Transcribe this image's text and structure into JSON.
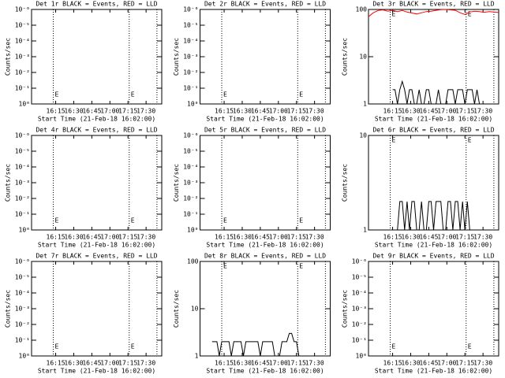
{
  "chart_data": [
    {
      "type": "line",
      "title": "Det 1r BLACK = Events, RED = LLD",
      "xlabel": "Start Time (21-Feb-18 16:02:00)",
      "ylabel": "Counts/sec",
      "log_y": true,
      "xlim": [
        955,
        1063
      ],
      "xticks": [
        {
          "value": 975,
          "label": "16:15"
        },
        {
          "value": 990,
          "label": "16:30"
        },
        {
          "value": 1005,
          "label": "16:45"
        },
        {
          "value": 1020,
          "label": "17:00"
        },
        {
          "value": 1035,
          "label": "17:15"
        },
        {
          "value": 1050,
          "label": "17:30"
        }
      ],
      "ylim": [
        1,
        1e-06
      ],
      "yticks": [
        {
          "value": 1,
          "label": "10⁰"
        },
        {
          "value": 0.1,
          "label": "10⁻¹"
        },
        {
          "value": 0.01,
          "label": "10⁻²"
        },
        {
          "value": 0.001,
          "label": "10⁻³"
        },
        {
          "value": 0.0001,
          "label": "10⁻⁴"
        },
        {
          "value": 1e-05,
          "label": "10⁻⁵"
        },
        {
          "value": 1e-06,
          "label": "10⁻⁶"
        }
      ],
      "vlines": [
        973,
        1036,
        1059
      ],
      "markers": [
        {
          "x": 973,
          "label": "E"
        },
        {
          "x": 1036,
          "label": "E"
        }
      ],
      "series": []
    },
    {
      "type": "line",
      "title": "Det 2r BLACK = Events, RED = LLD",
      "xlabel": "Start Time (21-Feb-18 16:02:00)",
      "ylabel": "Counts/sec",
      "log_y": true,
      "xlim": [
        955,
        1063
      ],
      "xticks": [
        {
          "value": 975,
          "label": "16:15"
        },
        {
          "value": 990,
          "label": "16:30"
        },
        {
          "value": 1005,
          "label": "16:45"
        },
        {
          "value": 1020,
          "label": "17:00"
        },
        {
          "value": 1035,
          "label": "17:15"
        },
        {
          "value": 1050,
          "label": "17:30"
        }
      ],
      "ylim": [
        1,
        1e-06
      ],
      "yticks": [
        {
          "value": 1,
          "label": "10⁰"
        },
        {
          "value": 0.1,
          "label": "10⁻¹"
        },
        {
          "value": 0.01,
          "label": "10⁻²"
        },
        {
          "value": 0.001,
          "label": "10⁻³"
        },
        {
          "value": 0.0001,
          "label": "10⁻⁴"
        },
        {
          "value": 1e-05,
          "label": "10⁻⁵"
        },
        {
          "value": 1e-06,
          "label": "10⁻⁶"
        }
      ],
      "vlines": [
        973,
        1036,
        1059
      ],
      "markers": [
        {
          "x": 973,
          "label": "E"
        },
        {
          "x": 1036,
          "label": "E"
        }
      ],
      "series": []
    },
    {
      "type": "line",
      "title": "Det 3r BLACK = Events, RED = LLD",
      "xlabel": "Start Time (21-Feb-18 16:02:00)",
      "ylabel": "Counts/sec",
      "log_y": true,
      "xlim": [
        955,
        1063
      ],
      "xticks": [
        {
          "value": 975,
          "label": "16:15"
        },
        {
          "value": 990,
          "label": "16:30"
        },
        {
          "value": 1005,
          "label": "16:45"
        },
        {
          "value": 1020,
          "label": "17:00"
        },
        {
          "value": 1035,
          "label": "17:15"
        },
        {
          "value": 1050,
          "label": "17:30"
        }
      ],
      "ylim": [
        1,
        100
      ],
      "yticks": [
        1,
        10,
        100
      ],
      "vlines": [
        973,
        1036,
        1059
      ],
      "markers": [
        {
          "x": 973,
          "label": "E"
        },
        {
          "x": 1036,
          "label": "E"
        }
      ],
      "series": [
        {
          "color": "#000000",
          "x": [
            975,
            977,
            979,
            981,
            983,
            985,
            987,
            989,
            991,
            993,
            995,
            997,
            999,
            1001,
            1003,
            1005,
            1007,
            1009,
            1011,
            1013,
            1015,
            1017,
            1019,
            1021,
            1023,
            1025,
            1027,
            1029,
            1031,
            1033,
            1035,
            1037,
            1039,
            1041,
            1043,
            1045,
            1047,
            1049,
            1051
          ],
          "values": [
            2,
            2,
            1,
            2,
            3,
            2,
            1,
            2,
            2,
            1,
            1,
            2,
            1,
            1,
            2,
            2,
            1,
            1,
            1,
            2,
            1,
            1,
            1,
            2,
            2,
            2,
            1,
            2,
            2,
            2,
            1,
            2,
            2,
            2,
            1,
            2,
            1,
            1,
            1
          ]
        },
        {
          "color": "#ff0000",
          "x": [
            955,
            959,
            963,
            967,
            971,
            975,
            979,
            983,
            987,
            991,
            995,
            999,
            1003,
            1007,
            1011,
            1015,
            1019,
            1023,
            1027,
            1031,
            1035,
            1039,
            1043,
            1047,
            1051,
            1055,
            1059,
            1063
          ],
          "values": [
            70,
            85,
            95,
            98,
            92,
            96,
            90,
            95,
            88,
            84,
            80,
            85,
            90,
            92,
            96,
            99,
            100,
            98,
            96,
            85,
            78,
            88,
            92,
            90,
            87,
            90,
            88,
            86
          ]
        }
      ]
    },
    {
      "type": "line",
      "title": "Det 4r BLACK = Events, RED = LLD",
      "xlabel": "Start Time (21-Feb-18 16:02:00)",
      "ylabel": "Counts/sec",
      "log_y": true,
      "xlim": [
        955,
        1063
      ],
      "xticks": [
        {
          "value": 975,
          "label": "16:15"
        },
        {
          "value": 990,
          "label": "16:30"
        },
        {
          "value": 1005,
          "label": "16:45"
        },
        {
          "value": 1020,
          "label": "17:00"
        },
        {
          "value": 1035,
          "label": "17:15"
        },
        {
          "value": 1050,
          "label": "17:30"
        }
      ],
      "ylim": [
        1,
        1e-06
      ],
      "yticks": [
        {
          "value": 1,
          "label": "10⁰"
        },
        {
          "value": 0.1,
          "label": "10⁻¹"
        },
        {
          "value": 0.01,
          "label": "10⁻²"
        },
        {
          "value": 0.001,
          "label": "10⁻³"
        },
        {
          "value": 0.0001,
          "label": "10⁻⁴"
        },
        {
          "value": 1e-05,
          "label": "10⁻⁵"
        },
        {
          "value": 1e-06,
          "label": "10⁻⁶"
        }
      ],
      "vlines": [
        973,
        1036,
        1059
      ],
      "markers": [
        {
          "x": 973,
          "label": "E"
        },
        {
          "x": 1036,
          "label": "E"
        }
      ],
      "series": []
    },
    {
      "type": "line",
      "title": "Det 5r BLACK = Events, RED = LLD",
      "xlabel": "Start Time (21-Feb-18 16:02:00)",
      "ylabel": "Counts/sec",
      "log_y": true,
      "xlim": [
        955,
        1063
      ],
      "xticks": [
        {
          "value": 975,
          "label": "16:15"
        },
        {
          "value": 990,
          "label": "16:30"
        },
        {
          "value": 1005,
          "label": "16:45"
        },
        {
          "value": 1020,
          "label": "17:00"
        },
        {
          "value": 1035,
          "label": "17:15"
        },
        {
          "value": 1050,
          "label": "17:30"
        }
      ],
      "ylim": [
        1,
        1e-06
      ],
      "yticks": [
        {
          "value": 1,
          "label": "10⁰"
        },
        {
          "value": 0.1,
          "label": "10⁻¹"
        },
        {
          "value": 0.01,
          "label": "10⁻²"
        },
        {
          "value": 0.001,
          "label": "10⁻³"
        },
        {
          "value": 0.0001,
          "label": "10⁻⁴"
        },
        {
          "value": 1e-05,
          "label": "10⁻⁵"
        },
        {
          "value": 1e-06,
          "label": "10⁻⁶"
        }
      ],
      "vlines": [
        973,
        1036,
        1059
      ],
      "markers": [
        {
          "x": 973,
          "label": "E"
        },
        {
          "x": 1036,
          "label": "E"
        }
      ],
      "series": []
    },
    {
      "type": "line",
      "title": "Det 6r BLACK = Events, RED = LLD",
      "xlabel": "Start Time (21-Feb-18 16:02:00)",
      "ylabel": "Counts/sec",
      "log_y": true,
      "xlim": [
        955,
        1063
      ],
      "xticks": [
        {
          "value": 975,
          "label": "16:15"
        },
        {
          "value": 990,
          "label": "16:30"
        },
        {
          "value": 1005,
          "label": "16:45"
        },
        {
          "value": 1020,
          "label": "17:00"
        },
        {
          "value": 1035,
          "label": "17:15"
        },
        {
          "value": 1050,
          "label": "17:30"
        }
      ],
      "ylim": [
        1,
        10
      ],
      "yticks": [
        1,
        10
      ],
      "vlines": [
        973,
        1036,
        1059
      ],
      "markers": [
        {
          "x": 973,
          "label": "E"
        },
        {
          "x": 1036,
          "label": "E"
        }
      ],
      "series": [
        {
          "color": "#000000",
          "x": [
            979,
            981,
            983,
            985,
            987,
            989,
            991,
            993,
            995,
            997,
            999,
            1001,
            1003,
            1005,
            1007,
            1009,
            1011,
            1013,
            1015,
            1017,
            1019,
            1021,
            1023,
            1025,
            1027,
            1029,
            1031,
            1033,
            1035,
            1037,
            1039
          ],
          "values": [
            1,
            2,
            2,
            1,
            2,
            1,
            2,
            2,
            1,
            1,
            2,
            1,
            1,
            2,
            2,
            1,
            2,
            2,
            2,
            1,
            1,
            2,
            2,
            1,
            2,
            2,
            1,
            2,
            1,
            2,
            1
          ]
        }
      ]
    },
    {
      "type": "line",
      "title": "Det 7r BLACK = Events, RED = LLD",
      "xlabel": "Start Time (21-Feb-18 16:02:00)",
      "ylabel": "Counts/sec",
      "log_y": true,
      "xlim": [
        955,
        1063
      ],
      "xticks": [
        {
          "value": 975,
          "label": "16:15"
        },
        {
          "value": 990,
          "label": "16:30"
        },
        {
          "value": 1005,
          "label": "16:45"
        },
        {
          "value": 1020,
          "label": "17:00"
        },
        {
          "value": 1035,
          "label": "17:15"
        },
        {
          "value": 1050,
          "label": "17:30"
        }
      ],
      "ylim": [
        1,
        1e-06
      ],
      "yticks": [
        {
          "value": 1,
          "label": "10⁰"
        },
        {
          "value": 0.1,
          "label": "10⁻¹"
        },
        {
          "value": 0.01,
          "label": "10⁻²"
        },
        {
          "value": 0.001,
          "label": "10⁻³"
        },
        {
          "value": 0.0001,
          "label": "10⁻⁴"
        },
        {
          "value": 1e-05,
          "label": "10⁻⁵"
        },
        {
          "value": 1e-06,
          "label": "10⁻⁶"
        }
      ],
      "vlines": [
        973,
        1036,
        1059
      ],
      "markers": [
        {
          "x": 973,
          "label": "E"
        },
        {
          "x": 1036,
          "label": "E"
        }
      ],
      "series": []
    },
    {
      "type": "line",
      "title": "Det 8r BLACK = Events, RED = LLD",
      "xlabel": "Start Time (21-Feb-18 16:02:00)",
      "ylabel": "Counts/sec",
      "log_y": true,
      "xlim": [
        955,
        1063
      ],
      "xticks": [
        {
          "value": 975,
          "label": "16:15"
        },
        {
          "value": 990,
          "label": "16:30"
        },
        {
          "value": 1005,
          "label": "16:45"
        },
        {
          "value": 1020,
          "label": "17:00"
        },
        {
          "value": 1035,
          "label": "17:15"
        },
        {
          "value": 1050,
          "label": "17:30"
        }
      ],
      "ylim": [
        1,
        100
      ],
      "yticks": [
        1,
        10,
        100
      ],
      "vlines": [
        973,
        1036,
        1059
      ],
      "markers": [
        {
          "x": 973,
          "label": "E"
        },
        {
          "x": 1036,
          "label": "E"
        }
      ],
      "series": [
        {
          "color": "#000000",
          "x": [
            965,
            967,
            969,
            971,
            973,
            975,
            977,
            979,
            981,
            983,
            985,
            987,
            989,
            991,
            993,
            995,
            997,
            999,
            1001,
            1003,
            1005,
            1007,
            1009,
            1011,
            1013,
            1015,
            1017,
            1019,
            1021,
            1023,
            1025,
            1027,
            1029,
            1031,
            1033,
            1035,
            1037,
            1039
          ],
          "values": [
            2,
            2,
            2,
            1,
            2,
            2,
            2,
            2,
            1,
            2,
            2,
            2,
            2,
            1,
            2,
            2,
            2,
            2,
            2,
            2,
            1,
            2,
            2,
            2,
            2,
            2,
            1,
            1,
            1,
            2,
            2,
            2,
            3,
            3,
            2,
            2,
            1,
            1
          ]
        }
      ]
    },
    {
      "type": "line",
      "title": "Det 9r BLACK = Events, RED = LLD",
      "xlabel": "Start Time (21-Feb-18 16:02:00)",
      "ylabel": "Counts/sec",
      "log_y": true,
      "xlim": [
        955,
        1063
      ],
      "xticks": [
        {
          "value": 975,
          "label": "16:15"
        },
        {
          "value": 990,
          "label": "16:30"
        },
        {
          "value": 1005,
          "label": "16:45"
        },
        {
          "value": 1020,
          "label": "17:00"
        },
        {
          "value": 1035,
          "label": "17:15"
        },
        {
          "value": 1050,
          "label": "17:30"
        }
      ],
      "ylim": [
        1,
        1e-06
      ],
      "yticks": [
        {
          "value": 1,
          "label": "10⁰"
        },
        {
          "value": 0.1,
          "label": "10⁻¹"
        },
        {
          "value": 0.01,
          "label": "10⁻²"
        },
        {
          "value": 0.001,
          "label": "10⁻³"
        },
        {
          "value": 0.0001,
          "label": "10⁻⁴"
        },
        {
          "value": 1e-05,
          "label": "10⁻⁵"
        },
        {
          "value": 1e-06,
          "label": "10⁻⁶"
        }
      ],
      "vlines": [
        973,
        1036,
        1059
      ],
      "markers": [
        {
          "x": 973,
          "label": "E"
        },
        {
          "x": 1036,
          "label": "E"
        }
      ],
      "series": []
    }
  ]
}
